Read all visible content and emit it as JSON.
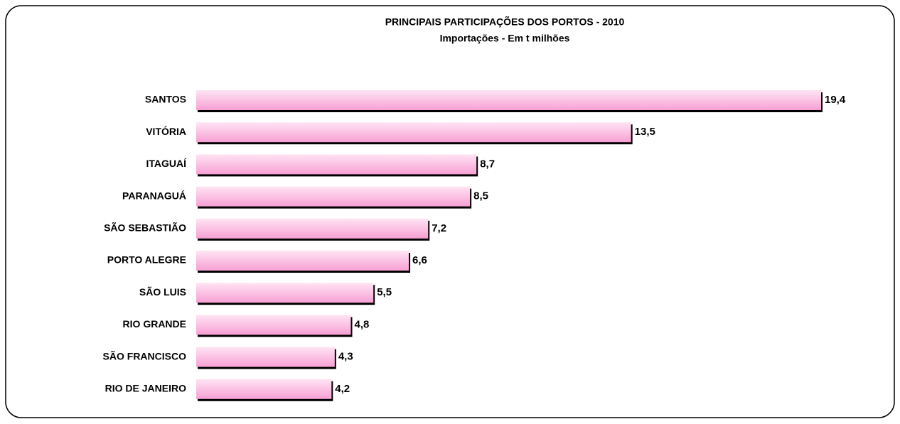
{
  "chart_data": {
    "type": "barh",
    "title": "PRINCIPAIS PARTICIPAÇÕES DOS PORTOS - 2010",
    "subtitle": "Importações - Em t milhões",
    "categories": [
      "SANTOS",
      "VITÓRIA",
      "ITAGUAÍ",
      "PARANAGUÁ",
      "SÃO SEBASTIÃO",
      "PORTO ALEGRE",
      "SÃO LUIS",
      "RIO GRANDE",
      "SÃO FRANCISCO",
      "RIO DE JANEIRO"
    ],
    "values": [
      19.4,
      13.5,
      8.7,
      8.5,
      7.2,
      6.6,
      5.5,
      4.8,
      4.3,
      4.2
    ],
    "value_labels": [
      "19,4",
      "13,5",
      "8,7",
      "8,5",
      "7,2",
      "6,6",
      "5,5",
      "4,8",
      "4,3",
      "4,2"
    ],
    "color": "#f7a8d8"
  }
}
